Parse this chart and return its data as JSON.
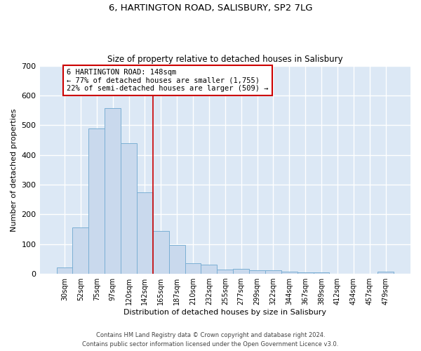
{
  "title_line1": "6, HARTINGTON ROAD, SALISBURY, SP2 7LG",
  "title_line2": "Size of property relative to detached houses in Salisbury",
  "xlabel": "Distribution of detached houses by size in Salisbury",
  "ylabel": "Number of detached properties",
  "bar_color": "#c9d9ed",
  "bar_edge_color": "#7bafd4",
  "categories": [
    "30sqm",
    "52sqm",
    "75sqm",
    "97sqm",
    "120sqm",
    "142sqm",
    "165sqm",
    "187sqm",
    "210sqm",
    "232sqm",
    "255sqm",
    "277sqm",
    "299sqm",
    "322sqm",
    "344sqm",
    "367sqm",
    "389sqm",
    "412sqm",
    "434sqm",
    "457sqm",
    "479sqm"
  ],
  "values": [
    22,
    155,
    490,
    557,
    440,
    275,
    145,
    97,
    35,
    32,
    15,
    17,
    12,
    12,
    7,
    5,
    5,
    0,
    0,
    0,
    7
  ],
  "ylim": [
    0,
    700
  ],
  "yticks": [
    0,
    100,
    200,
    300,
    400,
    500,
    600,
    700
  ],
  "property_line_x": 5.5,
  "annotation_text": "6 HARTINGTON ROAD: 148sqm\n← 77% of detached houses are smaller (1,755)\n22% of semi-detached houses are larger (509) →",
  "annotation_box_color": "#ffffff",
  "annotation_edge_color": "#cc0000",
  "vline_color": "#cc0000",
  "footer_line1": "Contains HM Land Registry data © Crown copyright and database right 2024.",
  "footer_line2": "Contains public sector information licensed under the Open Government Licence v3.0.",
  "background_color": "#dce8f5",
  "fig_background_color": "#ffffff",
  "grid_color": "#ffffff"
}
